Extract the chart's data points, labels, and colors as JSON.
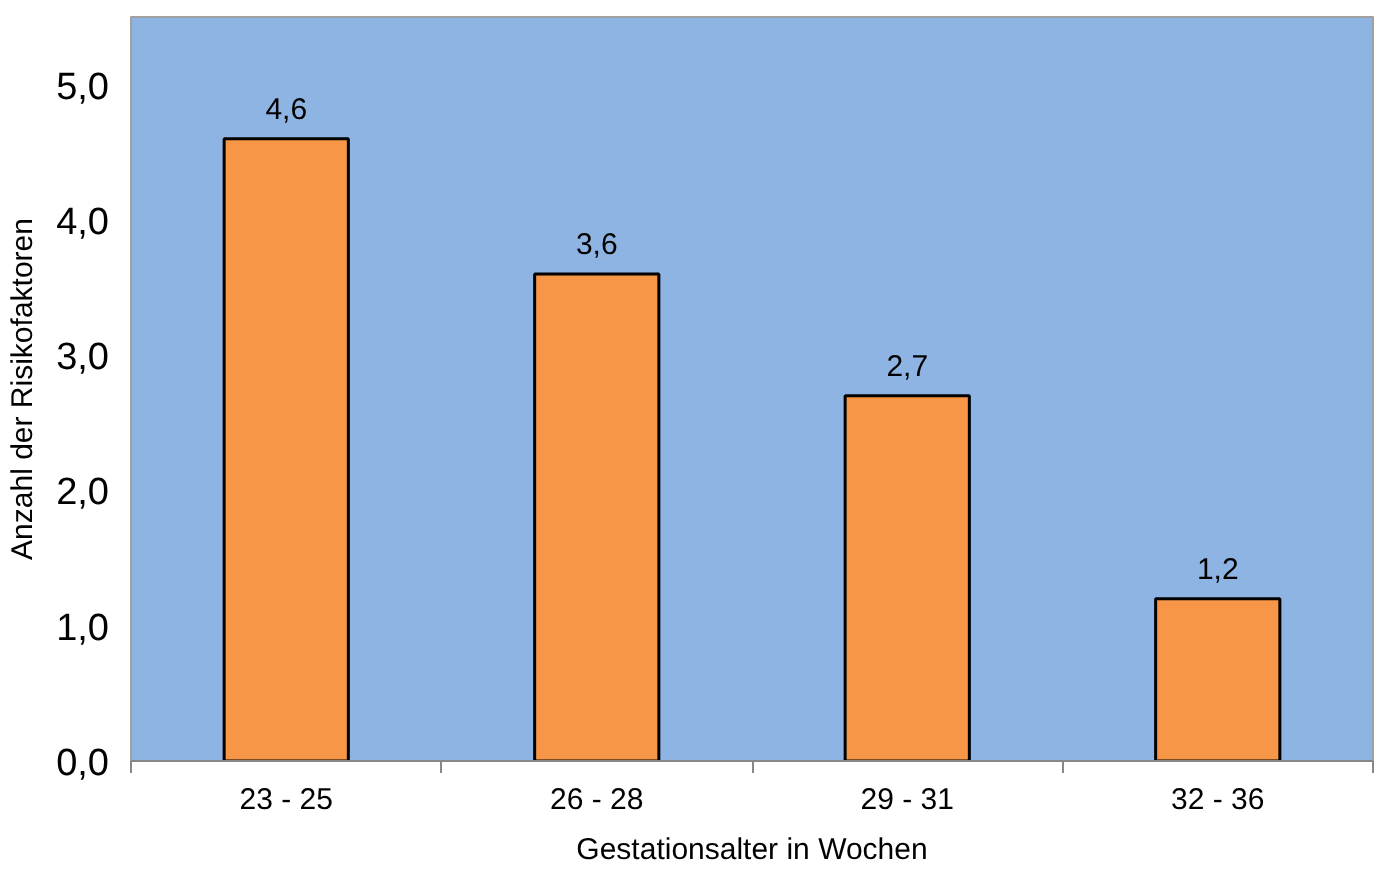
{
  "chart_data": {
    "type": "bar",
    "xlabel": "Gestationsalter in Wochen",
    "ylabel": "Anzahl der Risikofaktoren",
    "categories": [
      "23 - 25",
      "26 - 28",
      "29 - 31",
      "32 - 36"
    ],
    "values": [
      4.6,
      3.6,
      2.7,
      1.2
    ],
    "value_labels": [
      "4,6",
      "3,6",
      "2,7",
      "1,2"
    ],
    "color": "#f79646",
    "ylim": [
      0,
      5.5
    ],
    "yticks": [
      {
        "value": 0,
        "label": "0,0"
      },
      {
        "value": 1,
        "label": "1,0"
      },
      {
        "value": 2,
        "label": "2,0"
      },
      {
        "value": 3,
        "label": "3,0"
      },
      {
        "value": 4,
        "label": "4,0"
      },
      {
        "value": 5,
        "label": "5,0"
      }
    ],
    "grid": false
  }
}
